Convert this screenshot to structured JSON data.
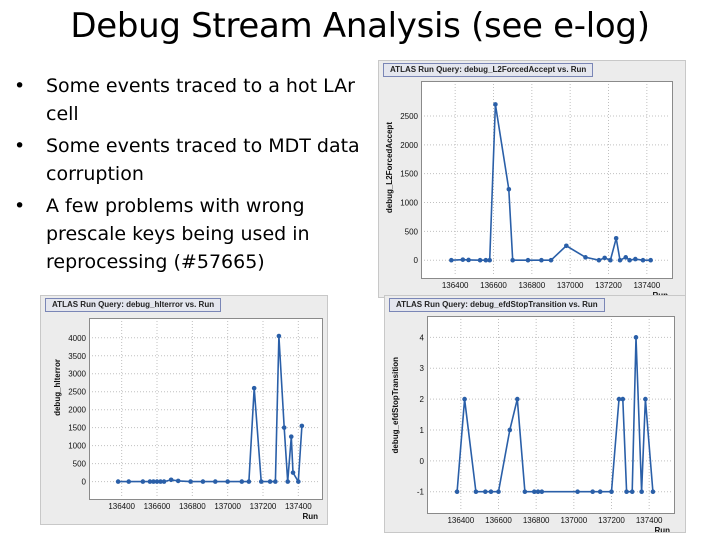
{
  "slide": {
    "title": "Debug Stream Analysis (see e-log)",
    "bullets": [
      "Some events traced to a hot LAr cell",
      "Some events traced to MDT data corruption",
      "A few problems with wrong prescale keys being used in reprocessing (#57665)"
    ],
    "bullet_glyph": "•"
  },
  "chart_data": [
    {
      "id": "c1",
      "type": "line",
      "title": "ATLAS Run Query: debug_L2ForcedAccept vs. Run",
      "xlabel": "Run",
      "ylabel": "debug_L2ForcedAccept",
      "xlim": [
        136300,
        137500
      ],
      "ylim": [
        -100,
        2950
      ],
      "xticks": [
        136400,
        136600,
        136800,
        137000,
        137200,
        137400
      ],
      "yticks": [
        0,
        500,
        1000,
        1500,
        2000,
        2500
      ],
      "grid": true,
      "color": "#2a5fa8",
      "x": [
        136380,
        136440,
        136470,
        136530,
        136560,
        136580,
        136610,
        136680,
        136700,
        136780,
        136850,
        136900,
        136980,
        137080,
        137150,
        137180,
        137210,
        137240,
        137260,
        137290,
        137310,
        137340,
        137380,
        137420
      ],
      "y": [
        0,
        10,
        5,
        0,
        0,
        0,
        2700,
        1230,
        0,
        0,
        0,
        0,
        250,
        50,
        0,
        40,
        0,
        380,
        0,
        50,
        0,
        20,
        0,
        0
      ]
    },
    {
      "id": "c2",
      "type": "line",
      "title": "ATLAS Run Query: debug_hlterror vs. Run",
      "xlabel": "Run",
      "ylabel": "debug_hlterror",
      "xlim": [
        136300,
        137500
      ],
      "ylim": [
        -150,
        4300
      ],
      "xticks": [
        136400,
        136600,
        136800,
        137000,
        137200,
        137400
      ],
      "yticks": [
        0,
        500,
        1000,
        1500,
        2000,
        2500,
        3000,
        3500,
        4000
      ],
      "grid": true,
      "color": "#2a5fa8",
      "x": [
        136380,
        136440,
        136520,
        136560,
        136580,
        136600,
        136620,
        136640,
        136680,
        136720,
        136790,
        136860,
        136930,
        137000,
        137080,
        137120,
        137150,
        137190,
        137240,
        137270,
        137290,
        137320,
        137340,
        137360,
        137370,
        137400,
        137420
      ],
      "y": [
        0,
        0,
        0,
        0,
        0,
        0,
        0,
        0,
        50,
        20,
        0,
        0,
        0,
        0,
        0,
        0,
        2600,
        0,
        0,
        0,
        4050,
        1500,
        0,
        1250,
        250,
        0,
        1550
      ]
    },
    {
      "id": "c3",
      "type": "line",
      "title": "ATLAS Run Query: debug_efdStopTransition vs. Run",
      "xlabel": "Run",
      "ylabel": "debug_efdStopTransition",
      "xlim": [
        136300,
        137500
      ],
      "ylim": [
        -1.3,
        4.4
      ],
      "xticks": [
        136400,
        136600,
        136800,
        137000,
        137200,
        137400
      ],
      "yticks": [
        -1,
        0,
        1,
        2,
        3,
        4
      ],
      "grid": true,
      "color": "#2a5fa8",
      "x": [
        136380,
        136420,
        136480,
        136530,
        136560,
        136600,
        136660,
        136700,
        136740,
        136790,
        136810,
        136830,
        137020,
        137100,
        137140,
        137200,
        137240,
        137260,
        137280,
        137310,
        137330,
        137360,
        137380,
        137420
      ],
      "y": [
        -1,
        2,
        -1,
        -1,
        -1,
        -1,
        1,
        2,
        -1,
        -1,
        -1,
        -1,
        -1,
        -1,
        -1,
        -1,
        2,
        2,
        -1,
        -1,
        4,
        -1,
        2,
        -1
      ]
    }
  ]
}
